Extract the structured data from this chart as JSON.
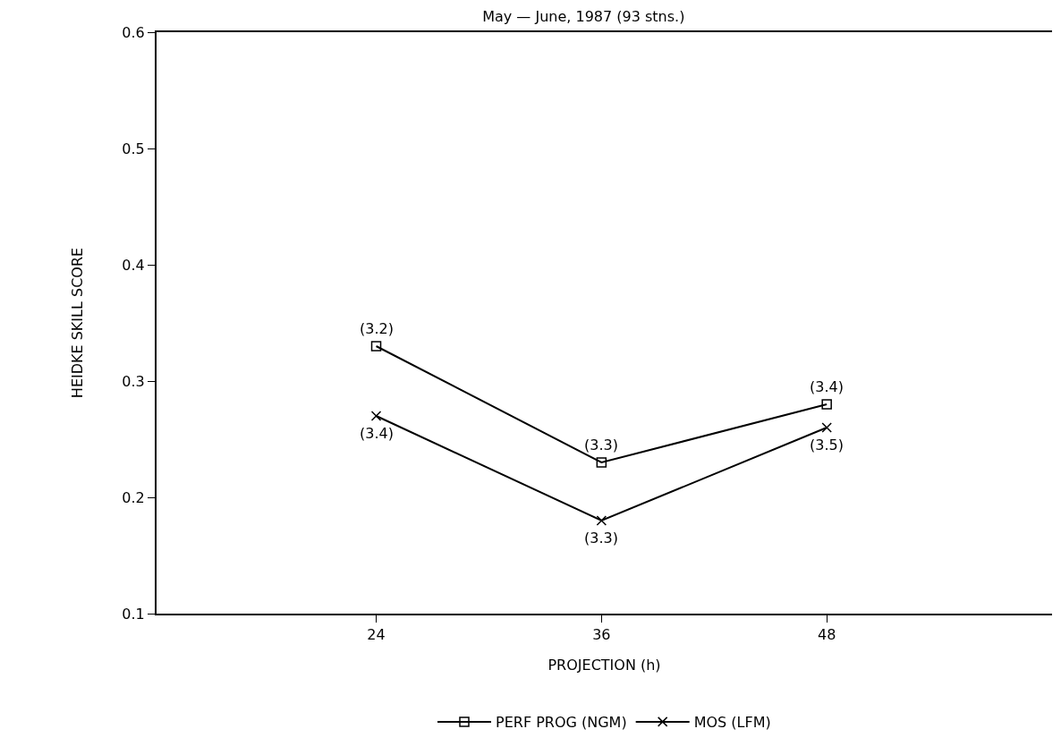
{
  "chart_data": {
    "type": "line",
    "title": "May — June, 1987 (93 stns.)",
    "xlabel": "PROJECTION (h)",
    "ylabel": "HEIDKE SKILL SCORE",
    "x": [
      24,
      36,
      48
    ],
    "series": [
      {
        "name": "PERF PROG (NGM)",
        "color": "#000000",
        "marker": "square",
        "values": [
          0.33,
          0.23,
          0.28
        ]
      },
      {
        "name": "MOS (LFM)",
        "color": "#000000",
        "marker": "cross",
        "values": [
          0.27,
          0.18,
          0.26
        ]
      }
    ],
    "annotations": [
      {
        "text": "(3.2)",
        "x": 24,
        "y": 0.33
      },
      {
        "text": "(3.3)",
        "x": 36,
        "y": 0.23
      },
      {
        "text": "(3.4)",
        "x": 48,
        "y": 0.28
      },
      {
        "text": "(3.4)",
        "x": 24,
        "y": 0.27
      },
      {
        "text": "(3.3)",
        "x": 36,
        "y": 0.18
      },
      {
        "text": "(3.5)",
        "x": 48,
        "y": 0.26
      }
    ],
    "xlim": [
      12.3,
      60
    ],
    "xticks": [
      24,
      36,
      48
    ],
    "ylim": [
      0.1,
      0.6
    ],
    "yticks": [
      0.1,
      0.2,
      0.3,
      0.4,
      0.5,
      0.6
    ],
    "grid": false,
    "legend": "bottom",
    "line_style": "solid"
  }
}
